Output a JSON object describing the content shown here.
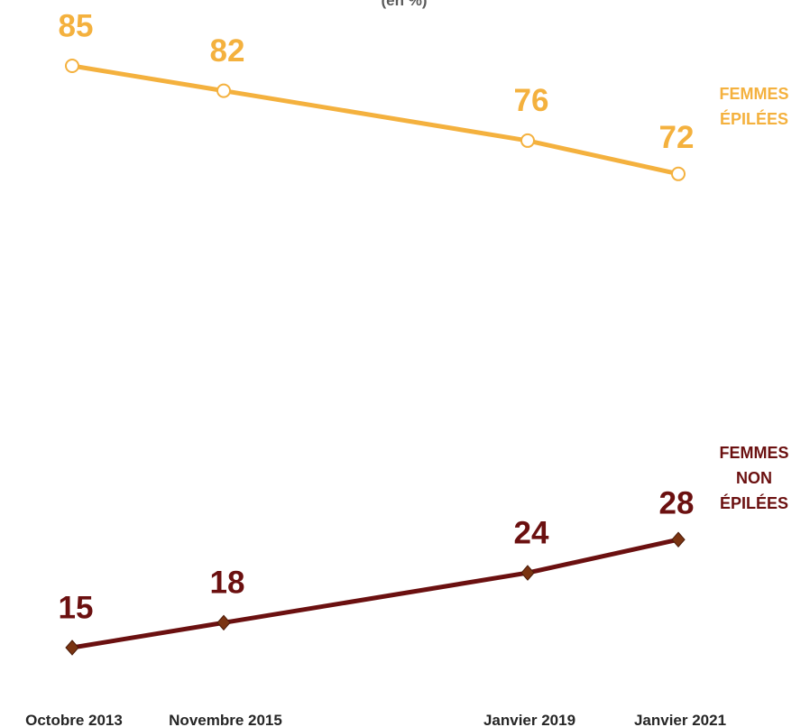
{
  "chart_data": {
    "type": "line",
    "subtitle": "(en %)",
    "categories": [
      "Octobre 2013",
      "Novembre 2015",
      "Janvier 2019",
      "Janvier 2021"
    ],
    "series": [
      {
        "name": "FEMMES ÉPILÉES",
        "color": "#f4b13e",
        "marker": "circle",
        "values": [
          85,
          82,
          76,
          72
        ]
      },
      {
        "name": "FEMMES NON ÉPILÉES",
        "color": "#6b1010",
        "marker": "diamond",
        "values": [
          15,
          18,
          24,
          28
        ]
      }
    ],
    "ylim": [
      15,
      85
    ]
  }
}
